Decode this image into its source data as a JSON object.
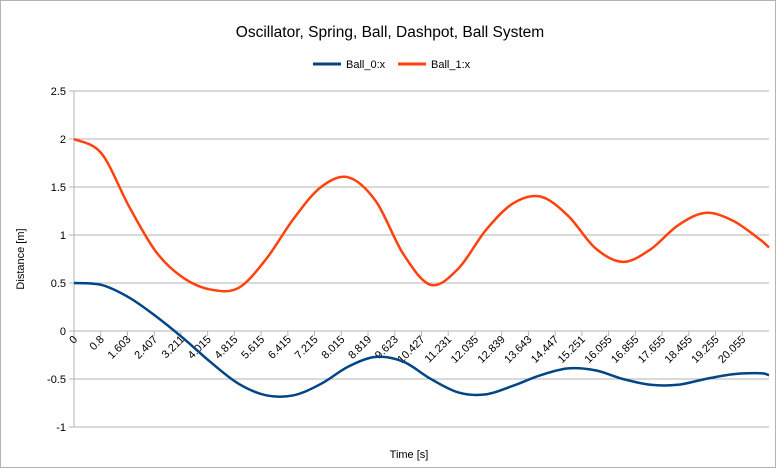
{
  "chart_data": {
    "type": "line",
    "title": "Oscillator, Spring, Ball, Dashpot, Ball System",
    "xlabel": "Time [s]",
    "ylabel": "Distance [m]",
    "xlim": [
      0,
      20.255
    ],
    "ylim": [
      -1,
      2.5
    ],
    "y_ticks": [
      -1,
      -0.5,
      0,
      0.5,
      1,
      1.5,
      2,
      2.5
    ],
    "y_tick_labels": [
      "-1",
      "-0.5",
      "0",
      "0.5",
      "1",
      "1.5",
      "2",
      "2.5"
    ],
    "x_tick_labels": [
      "0",
      "0.8",
      "1.603",
      "2.407",
      "3.211",
      "4.015",
      "4.815",
      "5.615",
      "6.415",
      "7.215",
      "8.015",
      "8.819",
      "9.623",
      "10.427",
      "11.231",
      "12.035",
      "12.839",
      "13.643",
      "14.447",
      "15.251",
      "16.055",
      "16.855",
      "17.655",
      "18.455",
      "19.255",
      "20.055"
    ],
    "grid": "horizontal",
    "legend_position": "top",
    "series": [
      {
        "name": "Ball_0:x",
        "color": "#004586",
        "x": [
          0,
          0.8,
          1.6,
          2.4,
          3.2,
          4.0,
          4.8,
          5.6,
          6.4,
          7.2,
          8.0,
          8.8,
          9.6,
          10.4,
          11.2,
          12.0,
          12.8,
          13.6,
          14.4,
          15.2,
          16.0,
          16.8,
          17.6,
          18.4,
          19.2,
          20.0,
          20.255
        ],
        "y": [
          0.5,
          0.48,
          0.35,
          0.15,
          -0.08,
          -0.33,
          -0.55,
          -0.67,
          -0.67,
          -0.55,
          -0.37,
          -0.27,
          -0.32,
          -0.5,
          -0.64,
          -0.66,
          -0.57,
          -0.46,
          -0.39,
          -0.41,
          -0.5,
          -0.56,
          -0.56,
          -0.5,
          -0.45,
          -0.44,
          -0.46
        ]
      },
      {
        "name": "Ball_1:x",
        "color": "#ff420e",
        "x": [
          0,
          0.8,
          1.6,
          2.4,
          3.2,
          4.0,
          4.8,
          5.6,
          6.4,
          7.2,
          8.0,
          8.8,
          9.6,
          10.4,
          11.2,
          12.0,
          12.8,
          13.6,
          14.4,
          15.2,
          16.0,
          16.8,
          17.6,
          18.4,
          19.2,
          20.0,
          20.255
        ],
        "y": [
          2.0,
          1.85,
          1.3,
          0.82,
          0.55,
          0.43,
          0.45,
          0.75,
          1.17,
          1.5,
          1.6,
          1.35,
          0.8,
          0.48,
          0.65,
          1.05,
          1.33,
          1.4,
          1.2,
          0.86,
          0.72,
          0.85,
          1.1,
          1.23,
          1.15,
          0.95,
          0.87
        ]
      }
    ]
  }
}
